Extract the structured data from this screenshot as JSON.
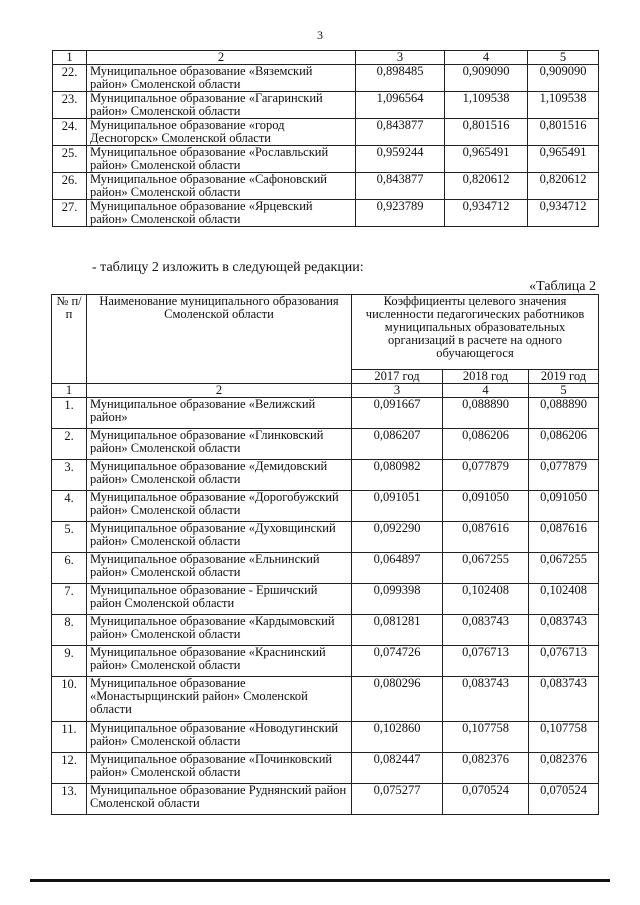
{
  "page_number": "3",
  "table1": {
    "col_numbers": [
      "1",
      "2",
      "3",
      "4",
      "5"
    ],
    "rows": [
      {
        "n": "22.",
        "name": "Муниципальное образование «Вяземский район» Смоленской области",
        "v": [
          "0,898485",
          "0,909090",
          "0,909090"
        ]
      },
      {
        "n": "23.",
        "name": "Муниципальное образование «Гагаринский район» Смоленской области",
        "v": [
          "1,096564",
          "1,109538",
          "1,109538"
        ]
      },
      {
        "n": "24.",
        "name": "Муниципальное образование «город Десногорск» Смоленской области",
        "v": [
          "0,843877",
          "0,801516",
          "0,801516"
        ]
      },
      {
        "n": "25.",
        "name": "Муниципальное образование «Рославльский район» Смоленской области",
        "v": [
          "0,959244",
          "0,965491",
          "0,965491"
        ]
      },
      {
        "n": "26.",
        "name": "Муниципальное образование «Сафоновский район» Смоленской области",
        "v": [
          "0,843877",
          "0,820612",
          "0,820612"
        ]
      },
      {
        "n": "27.",
        "name": "Муниципальное образование «Ярцевский район» Смоленской области",
        "v": [
          "0,923789",
          "0,934712",
          "0,934712"
        ]
      }
    ]
  },
  "intro_text": "- таблицу 2 изложить в следующей редакции:",
  "table2_caption": "«Таблица 2",
  "table2": {
    "header": {
      "num": "№ п/п",
      "name": "Наименование муниципального образования Смоленской области",
      "coef": "Коэффициенты целевого значения численности педагогических работников муниципальных образовательных организаций в расчете на одного обучающегося",
      "years": [
        "2017 год",
        "2018 год",
        "2019 год"
      ]
    },
    "col_numbers": [
      "1",
      "2",
      "3",
      "4",
      "5"
    ],
    "rows": [
      {
        "n": "1.",
        "name": "Муниципальное образование «Велижский район»",
        "v": [
          "0,091667",
          "0,088890",
          "0,088890"
        ]
      },
      {
        "n": "2.",
        "name": "Муниципальное образование «Глинковский район» Смоленской области",
        "v": [
          "0,086207",
          "0,086206",
          "0,086206"
        ]
      },
      {
        "n": "3.",
        "name": "Муниципальное образование «Демидовский район» Смоленской области",
        "v": [
          "0,080982",
          "0,077879",
          "0,077879"
        ]
      },
      {
        "n": "4.",
        "name": "Муниципальное образование «Дорогобужский район» Смоленской области",
        "v": [
          "0,091051",
          "0,091050",
          "0,091050"
        ]
      },
      {
        "n": "5.",
        "name": "Муниципальное образование «Духовщинский район» Смоленской области",
        "v": [
          "0,092290",
          "0,087616",
          "0,087616"
        ]
      },
      {
        "n": "6.",
        "name": "Муниципальное образование «Ельнинский район» Смоленской области",
        "v": [
          "0,064897",
          "0,067255",
          "0,067255"
        ]
      },
      {
        "n": "7.",
        "name": "Муниципальное образование - Ершичский район Смоленской области",
        "v": [
          "0,099398",
          "0,102408",
          "0,102408"
        ]
      },
      {
        "n": "8.",
        "name": "Муниципальное образование «Кардымовский район» Смоленской области",
        "v": [
          "0,081281",
          "0,083743",
          "0,083743"
        ]
      },
      {
        "n": "9.",
        "name": "Муниципальное образование «Краснинский район» Смоленской области",
        "v": [
          "0,074726",
          "0,076713",
          "0,076713"
        ]
      },
      {
        "n": "10.",
        "name": "Муниципальное образование «Монастырщинский район» Смоленской области",
        "v": [
          "0,080296",
          "0,083743",
          "0,083743"
        ]
      },
      {
        "n": "11.",
        "name": "Муниципальное образование «Новодугинский район» Смоленской области",
        "v": [
          "0,102860",
          "0,107758",
          "0,107758"
        ]
      },
      {
        "n": "12.",
        "name": "Муниципальное образование «Починковский район» Смоленской области",
        "v": [
          "0,082447",
          "0,082376",
          "0,082376"
        ]
      },
      {
        "n": "13.",
        "name": "Муниципальное образование Руднянский район Смоленской области",
        "v": [
          "0,075277",
          "0,070524",
          "0,070524"
        ]
      }
    ]
  }
}
